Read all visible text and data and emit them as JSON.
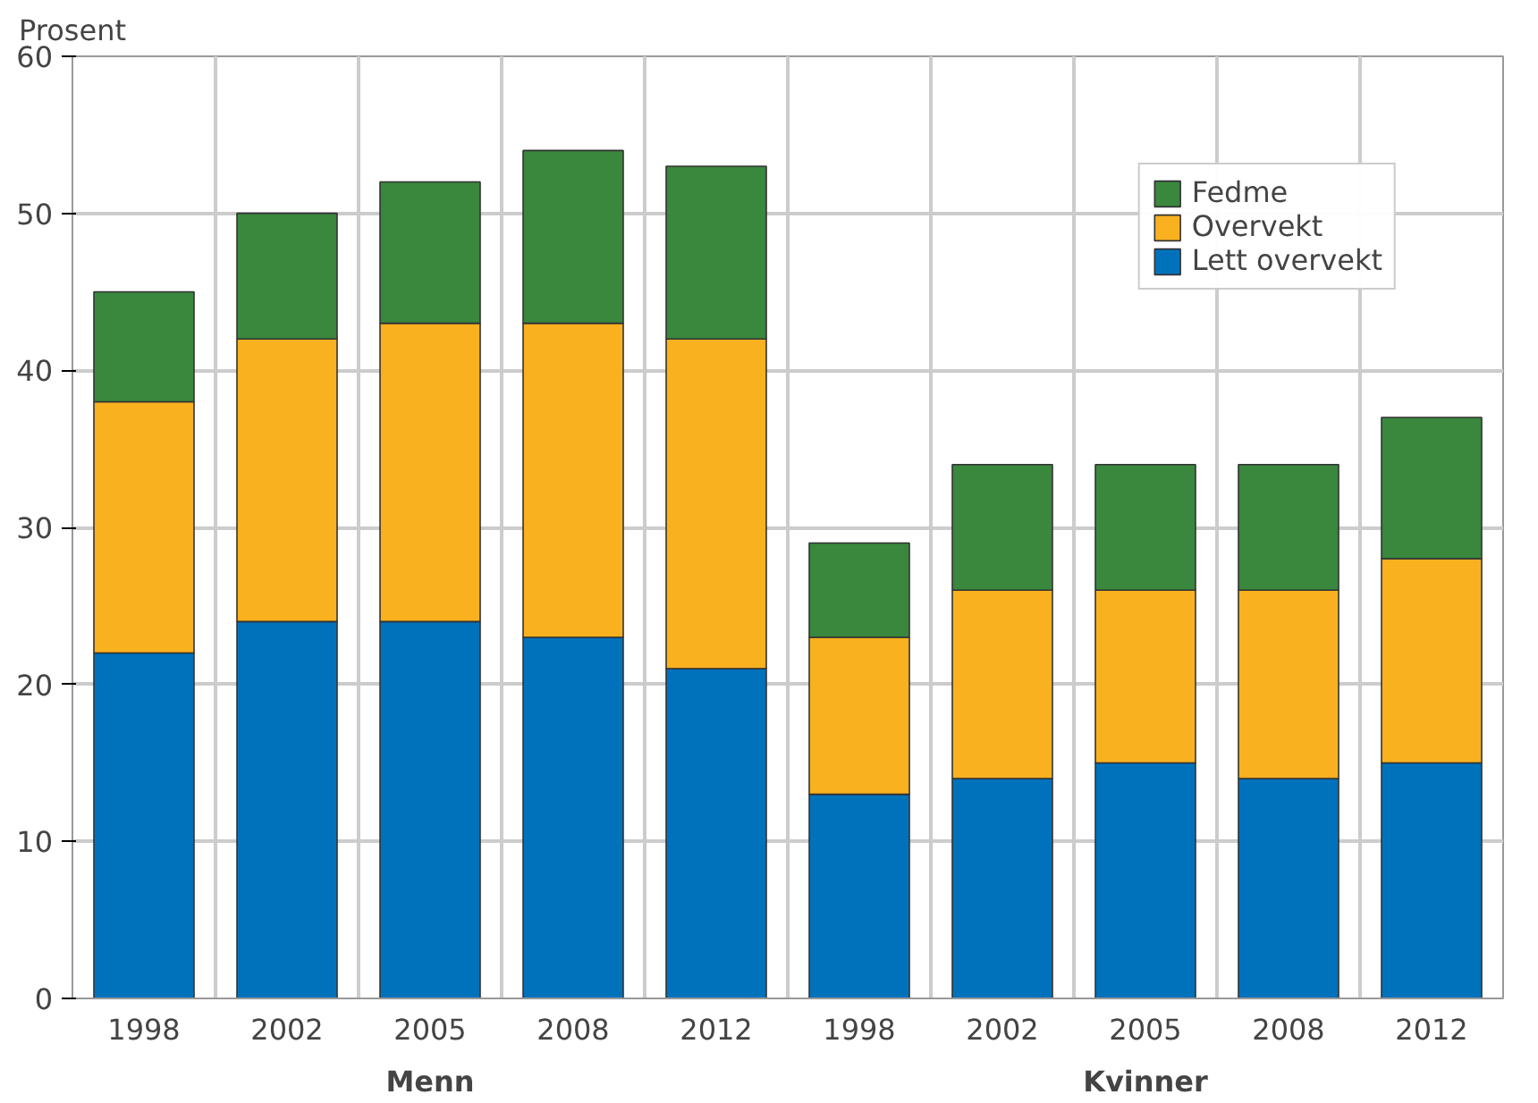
{
  "chart_data": {
    "type": "bar",
    "stacked": true,
    "ylabel": "Prosent",
    "categories": [
      "1998",
      "2002",
      "2005",
      "2008",
      "2012",
      "1998",
      "2002",
      "2005",
      "2008",
      "2012"
    ],
    "series": [
      {
        "name": "Lett overvekt",
        "color": "#0072bc",
        "values": [
          22,
          24,
          24,
          23,
          21,
          13,
          14,
          15,
          14,
          15
        ]
      },
      {
        "name": "Overvekt",
        "color": "#f9b11f",
        "values": [
          16,
          18,
          19,
          20,
          21,
          10,
          12,
          11,
          12,
          13
        ]
      },
      {
        "name": "Fedme",
        "color": "#3a873e",
        "values": [
          7,
          8,
          9,
          11,
          11,
          6,
          8,
          8,
          8,
          9
        ]
      }
    ],
    "ylim": [
      0,
      60
    ],
    "yticks": [
      0,
      10,
      20,
      30,
      40,
      50,
      60
    ],
    "annotations": [
      "Menn",
      "Kvinner"
    ],
    "grid": true,
    "legend": "top right"
  }
}
